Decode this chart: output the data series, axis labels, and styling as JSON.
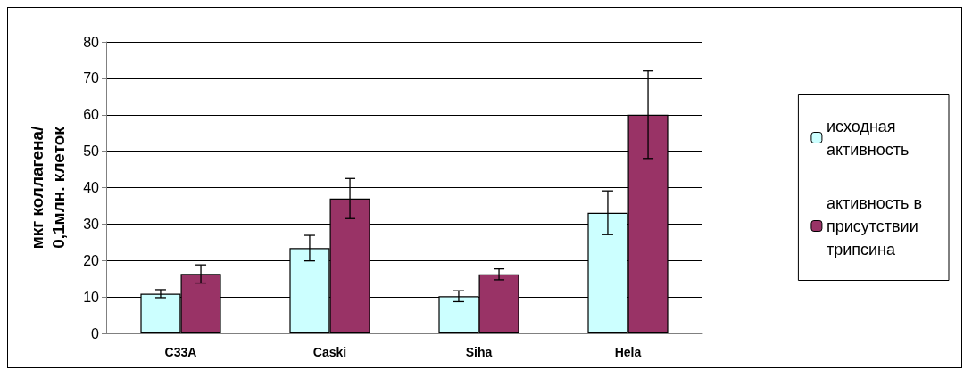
{
  "chart_data": {
    "type": "bar",
    "ylabel": "мкг коллагена/\n0,1млн. клеток",
    "categories": [
      "C33A",
      "Caski",
      "Siha",
      "Hela"
    ],
    "series": [
      {
        "name": "исходная активность",
        "color": "#ccffff",
        "values": [
          10.9,
          23.4,
          10.2,
          33.1
        ],
        "errors": [
          1.1,
          3.5,
          1.5,
          6
        ]
      },
      {
        "name": "активность в присутствии трипсина",
        "color": "#993366",
        "values": [
          16.3,
          37,
          16.2,
          60
        ],
        "errors": [
          2.5,
          5.5,
          1.5,
          12
        ]
      }
    ],
    "ylim": [
      0,
      80
    ],
    "yticks": [
      0,
      10,
      20,
      30,
      40,
      50,
      60,
      70,
      80
    ],
    "grid": "y",
    "legend": "right"
  }
}
